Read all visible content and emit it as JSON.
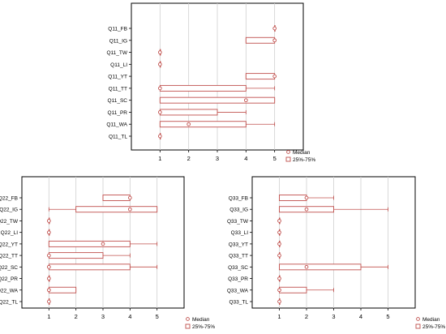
{
  "chart_data": [
    {
      "type": "box",
      "title": "",
      "xlabel": "",
      "ylabel": "",
      "xlim": [
        0,
        6
      ],
      "xticks": [
        1,
        2,
        3,
        4,
        5
      ],
      "grid": true,
      "legend": [
        "Median",
        "25%-75%"
      ],
      "legend_position": "bottom-right",
      "colors": {
        "box": "#c0504d",
        "whisker": "#c0504d",
        "median": "#c0504d",
        "grid": "#d0d0d0",
        "frame": "#000000"
      },
      "categories": [
        "Q11_FB",
        "Q11_IG",
        "Q11_TW",
        "Q11_LI",
        "Q11_YT",
        "Q11_TT",
        "Q11_SC",
        "Q11_PR",
        "Q11_WA",
        "Q11_TL"
      ],
      "rows": [
        {
          "label": "Q11_FB",
          "min": 5,
          "q1": 5,
          "median": 5,
          "q3": 5,
          "max": 5
        },
        {
          "label": "Q11_IG",
          "min": 4,
          "q1": 4,
          "median": 5,
          "q3": 5,
          "max": 5
        },
        {
          "label": "Q11_TW",
          "min": 1,
          "q1": 1,
          "median": 1,
          "q3": 1,
          "max": 1
        },
        {
          "label": "Q11_LI",
          "min": 1,
          "q1": 1,
          "median": 1,
          "q3": 1,
          "max": 1
        },
        {
          "label": "Q11_YT",
          "min": 4,
          "q1": 4,
          "median": 5,
          "q3": 5,
          "max": 5
        },
        {
          "label": "Q11_TT",
          "min": 1,
          "q1": 1,
          "median": 1,
          "q3": 4,
          "max": 5
        },
        {
          "label": "Q11_SC",
          "min": 1,
          "q1": 1,
          "median": 4,
          "q3": 5,
          "max": 5
        },
        {
          "label": "Q11_PR",
          "min": 1,
          "q1": 1,
          "median": 1,
          "q3": 3,
          "max": 4
        },
        {
          "label": "Q11_WA",
          "min": 1,
          "q1": 1,
          "median": 2,
          "q3": 4,
          "max": 5
        },
        {
          "label": "Q11_TL",
          "min": 1,
          "q1": 1,
          "median": 1,
          "q3": 1,
          "max": 1
        }
      ]
    },
    {
      "type": "box",
      "title": "",
      "xlabel": "",
      "ylabel": "",
      "xlim": [
        0,
        6
      ],
      "xticks": [
        1,
        2,
        3,
        4,
        5
      ],
      "grid": true,
      "legend": [
        "Median",
        "25%-75%"
      ],
      "legend_position": "bottom-right",
      "colors": {
        "box": "#c0504d",
        "whisker": "#c0504d",
        "median": "#c0504d",
        "grid": "#d0d0d0",
        "frame": "#000000"
      },
      "categories": [
        "Q22_FB",
        "Q22_IG",
        "Q22_TW",
        "Q22_LI",
        "Q22_YT",
        "Q22_TT",
        "Q22_SC",
        "Q22_PR",
        "Q22_WA",
        "Q22_TL"
      ],
      "rows": [
        {
          "label": "Q22_FB",
          "min": 3,
          "q1": 3,
          "median": 4,
          "q3": 4,
          "max": 4
        },
        {
          "label": "Q22_IG",
          "min": 1,
          "q1": 2,
          "median": 4,
          "q3": 5,
          "max": 5
        },
        {
          "label": "Q22_TW",
          "min": 1,
          "q1": 1,
          "median": 1,
          "q3": 1,
          "max": 1
        },
        {
          "label": "Q22_LI",
          "min": 1,
          "q1": 1,
          "median": 1,
          "q3": 1,
          "max": 1
        },
        {
          "label": "Q22_YT",
          "min": 1,
          "q1": 1,
          "median": 3,
          "q3": 4,
          "max": 5
        },
        {
          "label": "Q22_TT",
          "min": 1,
          "q1": 1,
          "median": 1,
          "q3": 3,
          "max": 4
        },
        {
          "label": "Q22_SC",
          "min": 1,
          "q1": 1,
          "median": 1,
          "q3": 4,
          "max": 5
        },
        {
          "label": "Q22_PR",
          "min": 1,
          "q1": 1,
          "median": 1,
          "q3": 1,
          "max": 1
        },
        {
          "label": "Q22_WA",
          "min": 1,
          "q1": 1,
          "median": 1,
          "q3": 2,
          "max": 2
        },
        {
          "label": "Q22_TL",
          "min": 1,
          "q1": 1,
          "median": 1,
          "q3": 1,
          "max": 1
        }
      ]
    },
    {
      "type": "box",
      "title": "",
      "xlabel": "",
      "ylabel": "",
      "xlim": [
        0,
        6
      ],
      "xticks": [
        1,
        2,
        3,
        4,
        5
      ],
      "grid": true,
      "legend": [
        "Median",
        "25%-75%"
      ],
      "legend_position": "bottom-right",
      "colors": {
        "box": "#c0504d",
        "whisker": "#c0504d",
        "median": "#c0504d",
        "grid": "#d0d0d0",
        "frame": "#000000"
      },
      "categories": [
        "Q33_FB",
        "Q33_IG",
        "Q33_TW",
        "Q33_LI",
        "Q33_YT",
        "Q33_TT",
        "Q33_SC",
        "Q33_PR",
        "Q33_WA",
        "Q33_TL"
      ],
      "rows": [
        {
          "label": "Q33_FB",
          "min": 1,
          "q1": 1,
          "median": 2,
          "q3": 2,
          "max": 3
        },
        {
          "label": "Q33_IG",
          "min": 1,
          "q1": 1,
          "median": 2,
          "q3": 3,
          "max": 5
        },
        {
          "label": "Q33_TW",
          "min": 1,
          "q1": 1,
          "median": 1,
          "q3": 1,
          "max": 1
        },
        {
          "label": "Q33_LI",
          "min": 1,
          "q1": 1,
          "median": 1,
          "q3": 1,
          "max": 1
        },
        {
          "label": "Q33_YT",
          "min": 1,
          "q1": 1,
          "median": 1,
          "q3": 1,
          "max": 1
        },
        {
          "label": "Q33_TT",
          "min": 1,
          "q1": 1,
          "median": 1,
          "q3": 1,
          "max": 1
        },
        {
          "label": "Q33_SC",
          "min": 1,
          "q1": 1,
          "median": 2,
          "q3": 4,
          "max": 5
        },
        {
          "label": "Q33_PR",
          "min": 1,
          "q1": 1,
          "median": 1,
          "q3": 1,
          "max": 1
        },
        {
          "label": "Q33_WA",
          "min": 1,
          "q1": 1,
          "median": 1,
          "q3": 2,
          "max": 3
        },
        {
          "label": "Q33_TL",
          "min": 1,
          "q1": 1,
          "median": 1,
          "q3": 1,
          "max": 1
        }
      ]
    }
  ]
}
